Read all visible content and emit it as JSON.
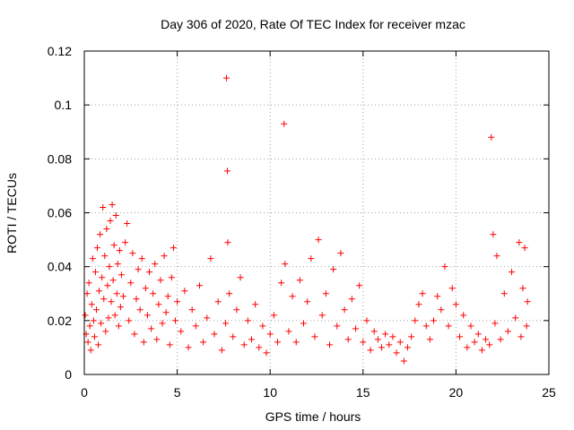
{
  "chart_data": {
    "type": "scatter",
    "title": "Day 306 of 2020, Rate Of TEC Index for receiver mzac",
    "xlabel": "GPS time / hours",
    "ylabel": "ROTI / TECUs",
    "xlim": [
      0,
      25
    ],
    "ylim": [
      0,
      0.12
    ],
    "xticks": [
      0,
      5,
      10,
      15,
      20,
      25
    ],
    "yticks": [
      0,
      0.02,
      0.04,
      0.06,
      0.08,
      0.1,
      0.12
    ],
    "xtick_labels": [
      "0",
      "5",
      "10",
      "15",
      "20",
      "25"
    ],
    "ytick_labels": [
      "0",
      "0.02",
      "0.04",
      "0.06",
      "0.08",
      "0.1",
      "0.12"
    ],
    "grid": true,
    "marker": "+",
    "color": "#ff0000",
    "series": [
      {
        "name": "ROTI",
        "points": [
          [
            0.05,
            0.022
          ],
          [
            0.1,
            0.015
          ],
          [
            0.15,
            0.03
          ],
          [
            0.2,
            0.012
          ],
          [
            0.25,
            0.034
          ],
          [
            0.3,
            0.018
          ],
          [
            0.35,
            0.009
          ],
          [
            0.4,
            0.026
          ],
          [
            0.45,
            0.043
          ],
          [
            0.5,
            0.02
          ],
          [
            0.55,
            0.014
          ],
          [
            0.6,
            0.038
          ],
          [
            0.65,
            0.024
          ],
          [
            0.7,
            0.047
          ],
          [
            0.75,
            0.011
          ],
          [
            0.8,
            0.031
          ],
          [
            0.85,
            0.052
          ],
          [
            0.9,
            0.019
          ],
          [
            0.95,
            0.036
          ],
          [
            1.0,
            0.062
          ],
          [
            1.05,
            0.028
          ],
          [
            1.1,
            0.044
          ],
          [
            1.15,
            0.016
          ],
          [
            1.2,
            0.054
          ],
          [
            1.25,
            0.033
          ],
          [
            1.3,
            0.021
          ],
          [
            1.35,
            0.04
          ],
          [
            1.4,
            0.057
          ],
          [
            1.45,
            0.027
          ],
          [
            1.5,
            0.063
          ],
          [
            1.55,
            0.035
          ],
          [
            1.6,
            0.048
          ],
          [
            1.65,
            0.022
          ],
          [
            1.7,
            0.059
          ],
          [
            1.75,
            0.03
          ],
          [
            1.8,
            0.041
          ],
          [
            1.85,
            0.018
          ],
          [
            1.9,
            0.046
          ],
          [
            1.95,
            0.025
          ],
          [
            2.0,
            0.037
          ],
          [
            2.1,
            0.029
          ],
          [
            2.2,
            0.049
          ],
          [
            2.3,
            0.056
          ],
          [
            2.4,
            0.02
          ],
          [
            2.5,
            0.034
          ],
          [
            2.6,
            0.045
          ],
          [
            2.7,
            0.015
          ],
          [
            2.8,
            0.028
          ],
          [
            2.9,
            0.039
          ],
          [
            3.0,
            0.024
          ],
          [
            3.1,
            0.043
          ],
          [
            3.2,
            0.012
          ],
          [
            3.3,
            0.032
          ],
          [
            3.4,
            0.022
          ],
          [
            3.5,
            0.038
          ],
          [
            3.6,
            0.017
          ],
          [
            3.7,
            0.03
          ],
          [
            3.8,
            0.041
          ],
          [
            3.9,
            0.013
          ],
          [
            4.0,
            0.026
          ],
          [
            4.1,
            0.035
          ],
          [
            4.2,
            0.019
          ],
          [
            4.3,
            0.044
          ],
          [
            4.4,
            0.023
          ],
          [
            4.5,
            0.029
          ],
          [
            4.6,
            0.011
          ],
          [
            4.7,
            0.036
          ],
          [
            4.8,
            0.047
          ],
          [
            4.9,
            0.02
          ],
          [
            5.0,
            0.027
          ],
          [
            5.2,
            0.016
          ],
          [
            5.4,
            0.031
          ],
          [
            5.6,
            0.01
          ],
          [
            5.8,
            0.024
          ],
          [
            6.0,
            0.018
          ],
          [
            6.2,
            0.033
          ],
          [
            6.4,
            0.012
          ],
          [
            6.6,
            0.021
          ],
          [
            6.8,
            0.043
          ],
          [
            7.0,
            0.015
          ],
          [
            7.2,
            0.027
          ],
          [
            7.4,
            0.009
          ],
          [
            7.6,
            0.019
          ],
          [
            7.65,
            0.11
          ],
          [
            7.7,
            0.0755
          ],
          [
            7.72,
            0.049
          ],
          [
            7.8,
            0.03
          ],
          [
            8.0,
            0.014
          ],
          [
            8.2,
            0.024
          ],
          [
            8.4,
            0.036
          ],
          [
            8.6,
            0.011
          ],
          [
            8.8,
            0.02
          ],
          [
            9.0,
            0.013
          ],
          [
            9.2,
            0.026
          ],
          [
            9.4,
            0.01
          ],
          [
            9.6,
            0.018
          ],
          [
            9.8,
            0.008
          ],
          [
            10.0,
            0.015
          ],
          [
            10.2,
            0.022
          ],
          [
            10.4,
            0.012
          ],
          [
            10.6,
            0.034
          ],
          [
            10.75,
            0.093
          ],
          [
            10.8,
            0.041
          ],
          [
            11.0,
            0.016
          ],
          [
            11.2,
            0.029
          ],
          [
            11.4,
            0.012
          ],
          [
            11.6,
            0.035
          ],
          [
            11.8,
            0.019
          ],
          [
            12.0,
            0.027
          ],
          [
            12.2,
            0.043
          ],
          [
            12.4,
            0.014
          ],
          [
            12.6,
            0.05
          ],
          [
            12.8,
            0.022
          ],
          [
            13.0,
            0.03
          ],
          [
            13.2,
            0.011
          ],
          [
            13.4,
            0.039
          ],
          [
            13.6,
            0.018
          ],
          [
            13.8,
            0.045
          ],
          [
            14.0,
            0.024
          ],
          [
            14.2,
            0.013
          ],
          [
            14.4,
            0.028
          ],
          [
            14.6,
            0.017
          ],
          [
            14.8,
            0.033
          ],
          [
            15.0,
            0.012
          ],
          [
            15.2,
            0.02
          ],
          [
            15.4,
            0.009
          ],
          [
            15.6,
            0.016
          ],
          [
            15.8,
            0.013
          ],
          [
            16.0,
            0.01
          ],
          [
            16.2,
            0.015
          ],
          [
            16.4,
            0.011
          ],
          [
            16.6,
            0.014
          ],
          [
            16.8,
            0.008
          ],
          [
            17.0,
            0.012
          ],
          [
            17.2,
            0.005
          ],
          [
            17.4,
            0.01
          ],
          [
            17.6,
            0.014
          ],
          [
            17.8,
            0.02
          ],
          [
            18.0,
            0.026
          ],
          [
            18.2,
            0.03
          ],
          [
            18.4,
            0.018
          ],
          [
            18.6,
            0.013
          ],
          [
            18.8,
            0.02
          ],
          [
            19.0,
            0.029
          ],
          [
            19.2,
            0.024
          ],
          [
            19.4,
            0.04
          ],
          [
            19.6,
            0.018
          ],
          [
            19.8,
            0.032
          ],
          [
            20.0,
            0.026
          ],
          [
            20.2,
            0.014
          ],
          [
            20.4,
            0.022
          ],
          [
            20.6,
            0.01
          ],
          [
            20.8,
            0.018
          ],
          [
            21.0,
            0.012
          ],
          [
            21.2,
            0.015
          ],
          [
            21.4,
            0.009
          ],
          [
            21.6,
            0.013
          ],
          [
            21.8,
            0.011
          ],
          [
            21.9,
            0.088
          ],
          [
            22.0,
            0.052
          ],
          [
            22.1,
            0.019
          ],
          [
            22.2,
            0.044
          ],
          [
            22.4,
            0.013
          ],
          [
            22.6,
            0.03
          ],
          [
            22.8,
            0.016
          ],
          [
            23.0,
            0.038
          ],
          [
            23.2,
            0.021
          ],
          [
            23.4,
            0.049
          ],
          [
            23.5,
            0.014
          ],
          [
            23.6,
            0.032
          ],
          [
            23.7,
            0.047
          ],
          [
            23.8,
            0.018
          ],
          [
            23.85,
            0.027
          ]
        ]
      }
    ]
  }
}
